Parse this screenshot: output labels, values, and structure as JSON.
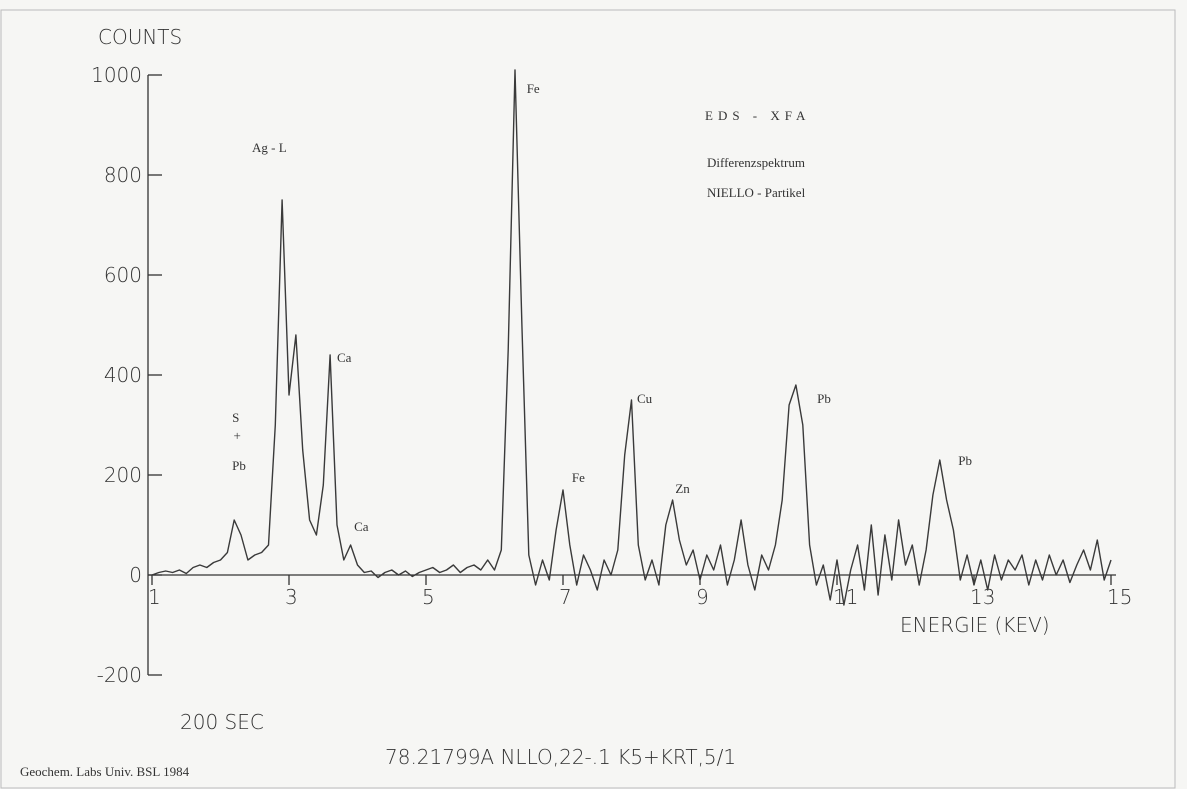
{
  "chart_data": {
    "type": "line",
    "title": "EDS - XFA",
    "subtitle": [
      "Differenzspektrum",
      "NIELLO - Partikel"
    ],
    "ylabel": "COUNTS",
    "xlabel": "ENERGIE (KEV)",
    "notes": [
      "200 SEC",
      "78.21799A NLLO,22-.1 K5+KRT,5/1",
      "Geochem. Labs Univ. BSL 1984"
    ],
    "color": "#3a3a3a",
    "xlim": [
      1,
      15
    ],
    "xticks": [
      1,
      3,
      5,
      7,
      9,
      11,
      13,
      15
    ],
    "ylim": [
      -200,
      1000
    ],
    "yticks": [
      1000,
      800,
      600,
      400,
      200,
      0,
      -200
    ],
    "x": [
      1.0,
      1.1,
      1.2,
      1.3,
      1.4,
      1.5,
      1.6,
      1.7,
      1.8,
      1.9,
      2.0,
      2.1,
      2.2,
      2.3,
      2.4,
      2.5,
      2.6,
      2.7,
      2.8,
      2.9,
      3.0,
      3.1,
      3.2,
      3.3,
      3.4,
      3.5,
      3.6,
      3.7,
      3.8,
      3.9,
      4.0,
      4.1,
      4.2,
      4.3,
      4.4,
      4.5,
      4.6,
      4.7,
      4.8,
      4.9,
      5.0,
      5.1,
      5.2,
      5.3,
      5.4,
      5.5,
      5.6,
      5.7,
      5.8,
      5.9,
      6.0,
      6.1,
      6.2,
      6.3,
      6.4,
      6.5,
      6.6,
      6.7,
      6.8,
      6.9,
      7.0,
      7.1,
      7.2,
      7.3,
      7.4,
      7.5,
      7.6,
      7.7,
      7.8,
      7.9,
      8.0,
      8.1,
      8.2,
      8.3,
      8.4,
      8.5,
      8.6,
      8.7,
      8.8,
      8.9,
      9.0,
      9.1,
      9.2,
      9.3,
      9.4,
      9.5,
      9.6,
      9.7,
      9.8,
      9.9,
      10.0,
      10.1,
      10.2,
      10.3,
      10.4,
      10.5,
      10.6,
      10.7,
      10.8,
      10.9,
      11.0,
      11.1,
      11.2,
      11.3,
      11.4,
      11.5,
      11.6,
      11.7,
      11.8,
      11.9,
      12.0,
      12.1,
      12.2,
      12.3,
      12.4,
      12.5,
      12.6,
      12.7,
      12.8,
      12.9,
      13.0,
      13.1,
      13.2,
      13.3,
      13.4,
      13.5,
      13.6,
      13.7,
      13.8,
      13.9,
      14.0,
      14.1,
      14.2,
      14.3,
      14.4,
      14.5,
      14.6,
      14.7,
      14.8,
      14.9,
      15.0
    ],
    "values": [
      0,
      5,
      8,
      5,
      10,
      3,
      15,
      20,
      15,
      25,
      30,
      45,
      110,
      80,
      30,
      40,
      45,
      60,
      300,
      750,
      360,
      480,
      250,
      110,
      80,
      180,
      440,
      100,
      30,
      60,
      20,
      5,
      8,
      -5,
      5,
      10,
      0,
      8,
      -3,
      5,
      10,
      15,
      5,
      10,
      20,
      5,
      15,
      20,
      10,
      30,
      10,
      50,
      450,
      1010,
      500,
      40,
      -20,
      30,
      -10,
      90,
      170,
      60,
      -20,
      40,
      10,
      -30,
      30,
      0,
      50,
      240,
      350,
      60,
      -10,
      30,
      -20,
      100,
      150,
      70,
      20,
      50,
      -10,
      40,
      10,
      60,
      -20,
      30,
      110,
      20,
      -30,
      40,
      10,
      60,
      150,
      340,
      380,
      300,
      60,
      -20,
      20,
      -50,
      30,
      -60,
      10,
      60,
      -30,
      100,
      -40,
      80,
      -10,
      110,
      20,
      60,
      -20,
      50,
      160,
      230,
      150,
      90,
      -10,
      40,
      -20,
      30,
      -30,
      40,
      -10,
      30,
      10,
      40,
      -20,
      30,
      -10,
      40,
      0,
      30,
      -15,
      20,
      50,
      10,
      70,
      -10,
      30
    ],
    "annotations": [
      {
        "text": "Ag - L",
        "x": 2.46,
        "y": 846
      },
      {
        "text": "Fe",
        "x": 6.47,
        "y": 964
      },
      {
        "text": "Ca",
        "x": 3.7,
        "y": 426
      },
      {
        "text": "Ca",
        "x": 3.95,
        "y": 88
      },
      {
        "text": "S",
        "x": 2.17,
        "y": 306
      },
      {
        "text": "+",
        "x": 2.19,
        "y": 270
      },
      {
        "text": "Pb",
        "x": 2.17,
        "y": 210
      },
      {
        "text": "Fe",
        "x": 7.13,
        "y": 186
      },
      {
        "text": "Cu",
        "x": 8.08,
        "y": 344
      },
      {
        "text": "Zn",
        "x": 8.64,
        "y": 164
      },
      {
        "text": "Pb",
        "x": 10.71,
        "y": 344
      },
      {
        "text": "Pb",
        "x": 12.77,
        "y": 220
      }
    ]
  }
}
